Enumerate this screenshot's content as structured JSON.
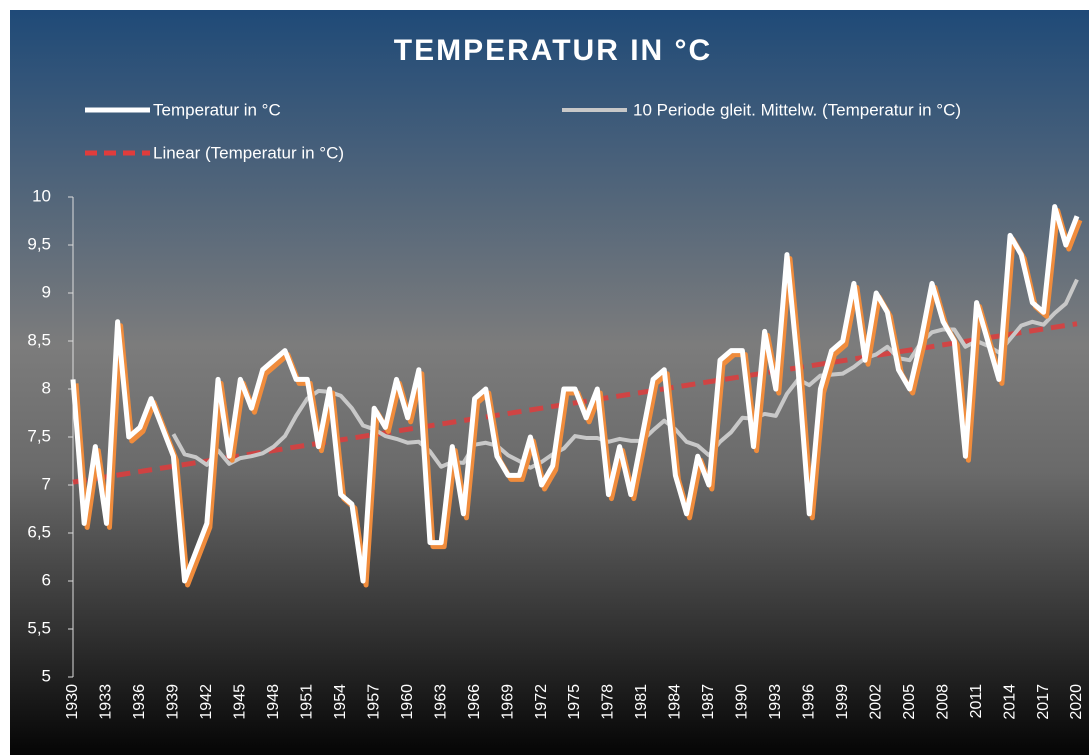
{
  "chart_data": {
    "type": "line",
    "title": "TEMPERATUR IN °C",
    "categories": [
      "1930",
      null,
      null,
      "1933",
      null,
      null,
      "1936",
      null,
      null,
      "1939",
      null,
      null,
      "1942",
      null,
      null,
      "1945",
      null,
      null,
      "1948",
      null,
      null,
      "1951",
      null,
      null,
      "1954",
      null,
      null,
      "1957",
      null,
      null,
      "1960",
      null,
      null,
      "1963",
      null,
      null,
      "1966",
      null,
      null,
      "1969",
      null,
      null,
      "1972",
      null,
      null,
      "1975",
      null,
      null,
      "1978",
      null,
      null,
      "1981",
      null,
      null,
      "1984",
      null,
      null,
      "1987",
      null,
      null,
      "1990",
      null,
      null,
      "1993",
      null,
      null,
      "1996",
      null,
      null,
      "1999",
      null,
      null,
      "2002",
      null,
      null,
      "2005",
      null,
      null,
      "2008",
      null,
      null,
      "2011",
      null,
      null,
      "2014",
      null,
      null,
      "2017",
      null,
      null,
      "2020"
    ],
    "series": [
      {
        "name": "Temperatur in °C",
        "color": "#ffffff",
        "shadow": "#f08c3c",
        "values": [
          8.1,
          6.6,
          7.4,
          6.6,
          8.7,
          7.5,
          7.6,
          7.9,
          7.6,
          7.3,
          6.0,
          6.3,
          6.6,
          8.1,
          7.3,
          8.1,
          7.8,
          8.2,
          8.3,
          8.4,
          8.1,
          8.1,
          7.4,
          8.0,
          6.9,
          6.8,
          6.0,
          7.8,
          7.6,
          8.1,
          7.7,
          8.2,
          6.4,
          6.4,
          7.4,
          6.7,
          7.9,
          8.0,
          7.3,
          7.1,
          7.1,
          7.5,
          7.0,
          7.2,
          8.0,
          8.0,
          7.7,
          8.0,
          6.9,
          7.4,
          6.9,
          7.5,
          8.1,
          8.2,
          7.1,
          6.7,
          7.3,
          7.0,
          8.3,
          8.4,
          8.4,
          7.4,
          8.6,
          8.0,
          9.4,
          8.2,
          6.7,
          8.0,
          8.4,
          8.5,
          9.1,
          8.3,
          9.0,
          8.8,
          8.2,
          8.0,
          8.5,
          9.1,
          8.7,
          8.5,
          7.3,
          8.9,
          8.5,
          8.1,
          9.6,
          9.4,
          8.9,
          8.8,
          9.9,
          9.5,
          9.8
        ]
      },
      {
        "name": "10 Periode gleit. Mittelw. (Temperatur in °C)",
        "color": "#c8c8c8",
        "values": [
          null,
          null,
          null,
          null,
          null,
          null,
          null,
          null,
          null,
          7.53,
          7.32,
          7.29,
          7.21,
          7.36,
          7.22,
          7.28,
          7.3,
          7.33,
          7.4,
          7.51,
          7.72,
          7.9,
          7.98,
          7.97,
          7.93,
          7.8,
          7.62,
          7.58,
          7.51,
          7.48,
          7.44,
          7.45,
          7.35,
          7.19,
          7.24,
          7.23,
          7.42,
          7.44,
          7.41,
          7.31,
          7.25,
          7.18,
          7.24,
          7.32,
          7.38,
          7.51,
          7.49,
          7.49,
          7.45,
          7.48,
          7.46,
          7.46,
          7.57,
          7.67,
          7.58,
          7.45,
          7.41,
          7.31,
          7.45,
          7.55,
          7.7,
          7.69,
          7.74,
          7.72,
          7.95,
          8.1,
          8.04,
          8.14,
          8.15,
          8.16,
          8.23,
          8.32,
          8.36,
          8.44,
          8.32,
          8.3,
          8.48,
          8.59,
          8.62,
          8.62,
          8.44,
          8.5,
          8.45,
          8.38,
          8.52,
          8.66,
          8.7,
          8.67,
          8.79,
          8.89,
          9.14
        ]
      }
    ],
    "trendline": {
      "name": "Linear (Temperatur in °C)",
      "color": "#e03c3c",
      "start": 7.03,
      "end": 8.68
    },
    "ylim": [
      5,
      10
    ],
    "yticks": [
      5,
      {
        "value": 5.5,
        "label": "5,5"
      },
      6,
      {
        "value": 6.5,
        "label": "6,5"
      },
      7,
      {
        "value": 7.5,
        "label": "7,5"
      },
      8,
      {
        "value": 8.5,
        "label": "8,5"
      },
      9,
      {
        "value": 9.5,
        "label": "9,5"
      },
      10
    ]
  }
}
